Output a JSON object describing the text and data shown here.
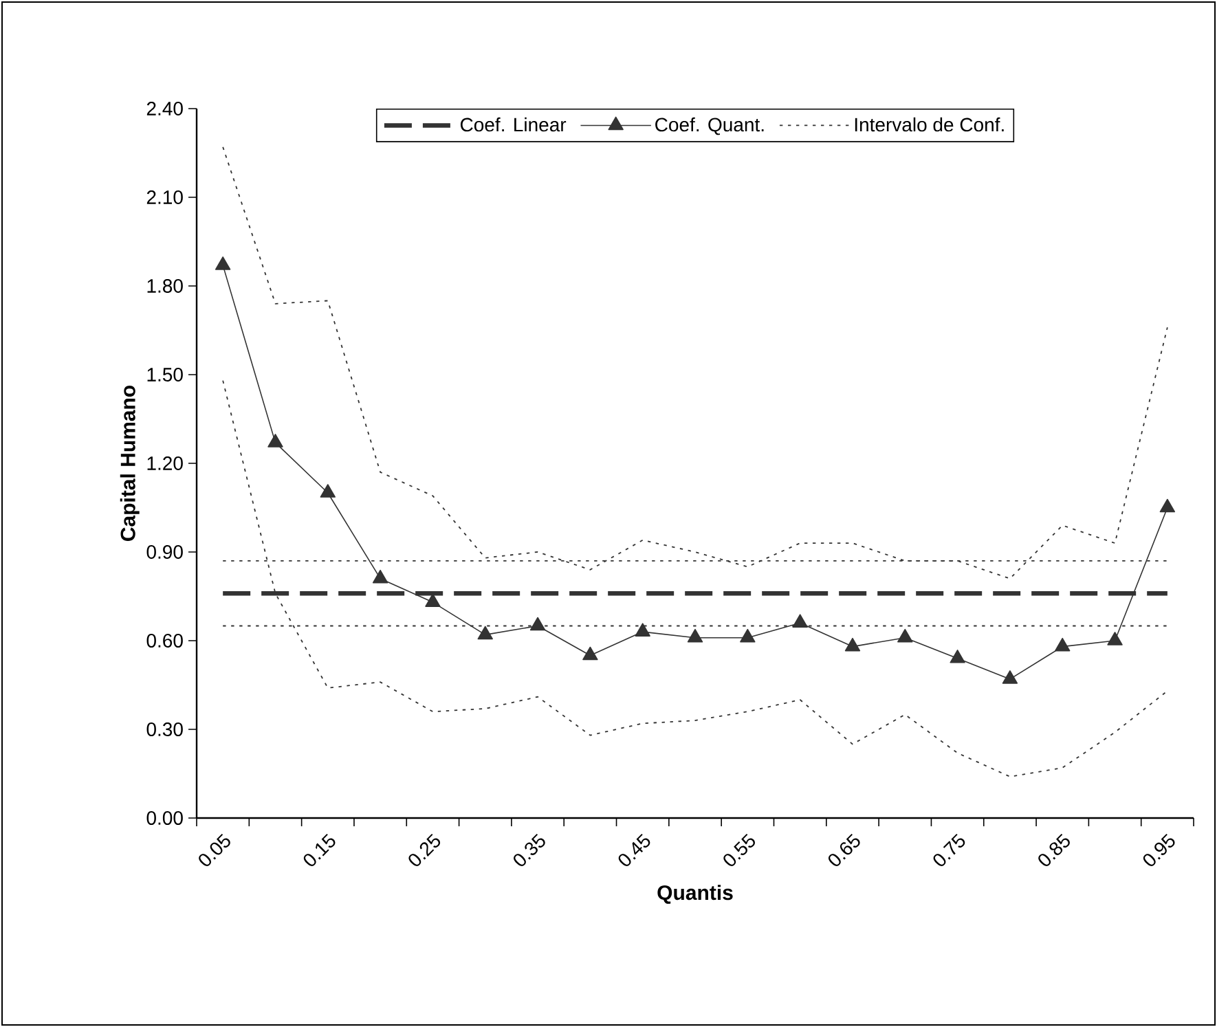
{
  "chart_data": {
    "type": "line",
    "xlabel": "Quantis",
    "ylabel": "Capital Humano",
    "categories": [
      "0.05",
      null,
      "0.15",
      null,
      "0.25",
      null,
      "0.35",
      null,
      "0.45",
      null,
      "0.55",
      null,
      "0.65",
      null,
      "0.75",
      null,
      "0.85",
      null,
      "0.95"
    ],
    "ylim": [
      0,
      2.4
    ],
    "yticks": [
      {
        "value": 0,
        "label": "0.00"
      },
      {
        "value": 0.3,
        "label": "0.30"
      },
      {
        "value": 0.6,
        "label": "0.60"
      },
      {
        "value": 0.9,
        "label": "0.90"
      },
      {
        "value": 1.2,
        "label": "1.20"
      },
      {
        "value": 1.5,
        "label": "1.50"
      },
      {
        "value": 1.8,
        "label": "1.80"
      },
      {
        "value": 2.1,
        "label": "2.10"
      },
      {
        "value": 2.4,
        "label": "2.40"
      }
    ],
    "grid": false,
    "legend": "top",
    "series": [
      {
        "name": "Coef. Linear",
        "color": "#333333",
        "line_style": "dashed",
        "marker": "none",
        "values": [
          0.76,
          0.76,
          0.76,
          0.76,
          0.76,
          0.76,
          0.76,
          0.76,
          0.76,
          0.76,
          0.76,
          0.76,
          0.76,
          0.76,
          0.76,
          0.76,
          0.76,
          0.76,
          0.76
        ]
      },
      {
        "name": "Coef. Quant.",
        "color": "#333333",
        "line_style": "solid",
        "marker": "triangle",
        "values": [
          1.87,
          1.27,
          1.1,
          0.81,
          0.73,
          0.62,
          0.65,
          0.55,
          0.63,
          0.61,
          0.61,
          0.66,
          0.58,
          0.61,
          0.54,
          0.47,
          0.58,
          0.6,
          1.05
        ]
      },
      {
        "name": "Intervalo de Conf.",
        "color": "#333333",
        "line_style": "dotted",
        "marker": "none",
        "values": [
          2.27,
          1.74,
          1.75,
          1.17,
          1.09,
          0.88,
          0.9,
          0.84,
          0.94,
          0.9,
          0.85,
          0.93,
          0.93,
          0.87,
          0.87,
          0.81,
          0.99,
          0.93,
          1.66
        ]
      },
      {
        "color": "#333333",
        "line_style": "dotted",
        "marker": "none",
        "values": [
          1.48,
          0.76,
          0.44,
          0.46,
          0.36,
          0.37,
          0.41,
          0.28,
          0.32,
          0.33,
          0.36,
          0.4,
          0.25,
          0.35,
          0.22,
          0.14,
          0.17,
          0.29,
          0.43
        ]
      },
      {
        "color": "#333333",
        "line_style": "dotted",
        "marker": "none",
        "values": [
          0.87,
          0.87,
          0.87,
          0.87,
          0.87,
          0.87,
          0.87,
          0.87,
          0.87,
          0.87,
          0.87,
          0.87,
          0.87,
          0.87,
          0.87,
          0.87,
          0.87,
          0.87,
          0.87
        ]
      },
      {
        "color": "#333333",
        "line_style": "dotted",
        "marker": "none",
        "values": [
          0.65,
          0.65,
          0.65,
          0.65,
          0.65,
          0.65,
          0.65,
          0.65,
          0.65,
          0.65,
          0.65,
          0.65,
          0.65,
          0.65,
          0.65,
          0.65,
          0.65,
          0.65,
          0.65
        ]
      }
    ]
  }
}
